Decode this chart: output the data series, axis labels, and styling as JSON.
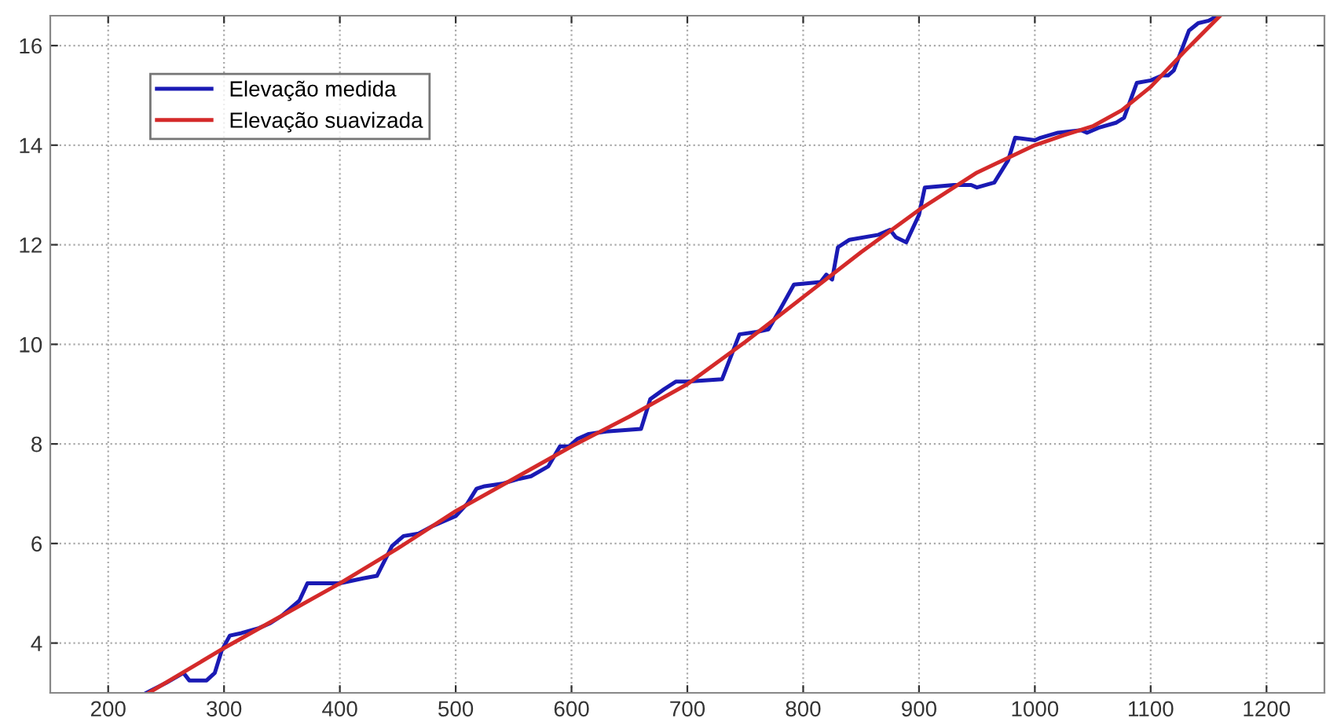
{
  "chart_data": {
    "type": "line",
    "xlim": [
      150,
      1250
    ],
    "xticks": [
      200,
      300,
      400,
      500,
      600,
      700,
      800,
      900,
      1000,
      1100,
      1200
    ],
    "ylim": [
      3,
      16.6
    ],
    "yticks": [
      4,
      6,
      8,
      10,
      12,
      14,
      16
    ],
    "grid": true,
    "legend": "top left",
    "line_style": "solid",
    "marker": "none",
    "series": [
      {
        "name": "Elevação medida",
        "color": "#1a1ab4",
        "x": [
          233,
          250,
          265,
          270,
          285,
          292,
          298,
          305,
          315,
          330,
          340,
          350,
          365,
          372,
          385,
          400,
          420,
          432,
          445,
          455,
          468,
          480,
          500,
          510,
          518,
          525,
          540,
          555,
          565,
          580,
          590,
          598,
          605,
          615,
          630,
          660,
          668,
          680,
          690,
          700,
          730,
          735,
          745,
          760,
          770,
          780,
          792,
          815,
          820,
          825,
          830,
          840,
          865,
          875,
          880,
          889,
          900,
          905,
          930,
          945,
          950,
          965,
          977,
          983,
          1000,
          1005,
          1020,
          1040,
          1045,
          1055,
          1070,
          1077,
          1088,
          1100,
          1110,
          1115,
          1120,
          1133,
          1141,
          1150,
          1158
        ],
        "values": [
          3.0,
          3.2,
          3.4,
          3.25,
          3.25,
          3.4,
          3.85,
          4.15,
          4.2,
          4.3,
          4.4,
          4.55,
          4.85,
          5.2,
          5.2,
          5.2,
          5.3,
          5.35,
          5.95,
          6.15,
          6.2,
          6.35,
          6.55,
          6.8,
          7.1,
          7.15,
          7.2,
          7.3,
          7.35,
          7.55,
          7.95,
          7.95,
          8.1,
          8.2,
          8.25,
          8.3,
          8.9,
          9.1,
          9.25,
          9.25,
          9.3,
          9.6,
          10.2,
          10.25,
          10.3,
          10.7,
          11.2,
          11.25,
          11.4,
          11.3,
          11.95,
          12.1,
          12.2,
          12.3,
          12.15,
          12.05,
          12.6,
          13.15,
          13.2,
          13.2,
          13.15,
          13.25,
          13.7,
          14.15,
          14.1,
          14.15,
          14.25,
          14.3,
          14.25,
          14.35,
          14.45,
          14.55,
          15.25,
          15.3,
          15.4,
          15.4,
          15.5,
          16.3,
          16.45,
          16.5,
          16.6
        ]
      },
      {
        "name": "Elevação suavizada",
        "color": "#d42a2a",
        "x": [
          235,
          300,
          350,
          400,
          450,
          500,
          550,
          600,
          650,
          700,
          750,
          800,
          850,
          900,
          950,
          1000,
          1025,
          1050,
          1075,
          1100,
          1130,
          1160
        ],
        "values": [
          3.0,
          3.9,
          4.55,
          5.2,
          5.9,
          6.65,
          7.3,
          7.95,
          8.55,
          9.2,
          10.05,
          10.95,
          11.85,
          12.7,
          13.45,
          14.0,
          14.2,
          14.38,
          14.7,
          15.17,
          15.9,
          16.6
        ]
      }
    ]
  }
}
